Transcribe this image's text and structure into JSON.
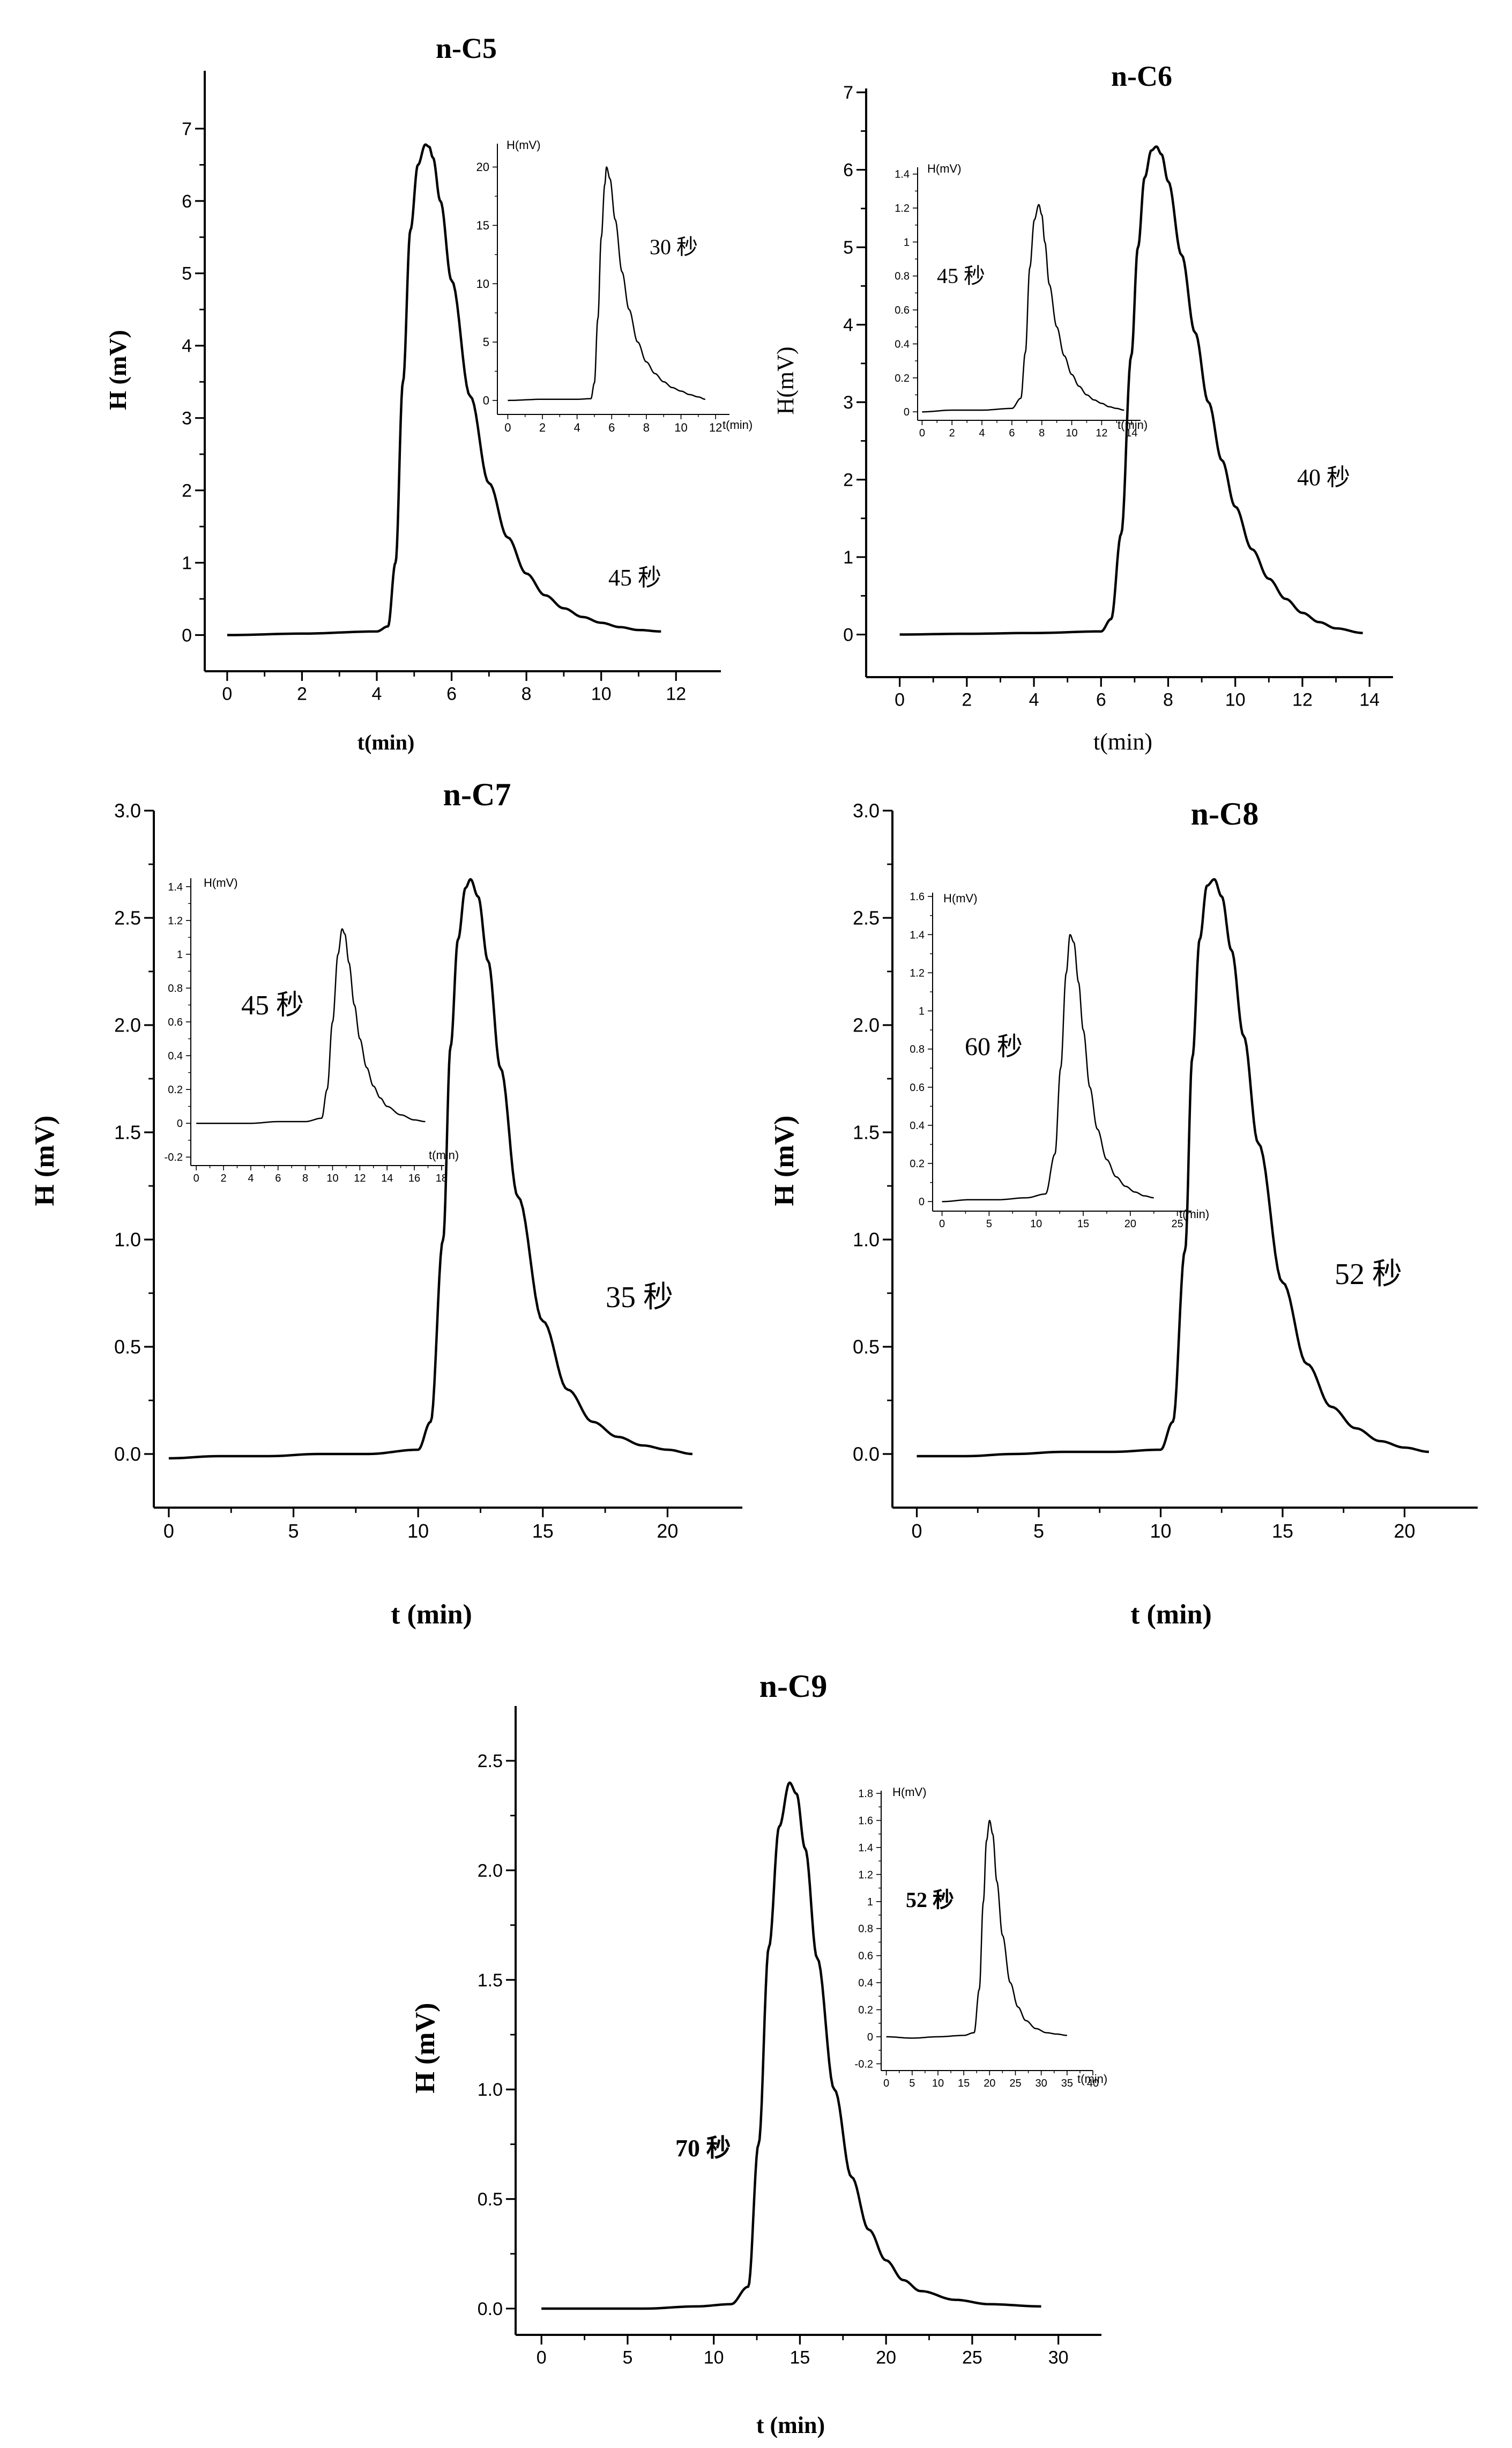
{
  "figure": {
    "charts": [
      {
        "id": "c5",
        "title": "n-C5",
        "title_bold": true,
        "xlabel": "t(min)",
        "ylabel": "H (mV)",
        "label_bold": true,
        "annotation": "45 秒",
        "annotation_bold": false,
        "inset": {
          "ylabel": "H(mV)",
          "xlabel": "t(min)",
          "annotation": "30 秒"
        }
      },
      {
        "id": "c6",
        "title": "n-C6",
        "title_bold": true,
        "xlabel": "t(min)",
        "ylabel": "H(mV)",
        "label_bold": false,
        "annotation": "40 秒",
        "annotation_bold": false,
        "inset": {
          "ylabel": "H(mV)",
          "xlabel": "t(min)",
          "annotation": "45 秒"
        }
      },
      {
        "id": "c7",
        "title": "n-C7",
        "title_bold": true,
        "xlabel": "t (min)",
        "ylabel": "H (mV)",
        "label_bold": true,
        "annotation": "35 秒",
        "annotation_bold": false,
        "inset": {
          "ylabel": "H(mV)",
          "xlabel": "t(min)",
          "annotation": "45 秒"
        }
      },
      {
        "id": "c8",
        "title": "n-C8",
        "title_bold": true,
        "xlabel": "t (min)",
        "ylabel": "H (mV)",
        "label_bold": true,
        "annotation": "52 秒",
        "annotation_bold": false,
        "inset": {
          "ylabel": "H(mV)",
          "xlabel": "t(min)",
          "annotation": "60 秒"
        }
      },
      {
        "id": "c9",
        "title": "n-C9",
        "title_bold": true,
        "xlabel": "t (min)",
        "ylabel": "H (mV)",
        "label_bold": true,
        "annotation": "70 秒",
        "annotation_bold": true,
        "inset": {
          "ylabel": "H(mV)",
          "xlabel": "t(min)",
          "annotation": "52 秒"
        }
      }
    ]
  },
  "chart_data": [
    {
      "type": "line",
      "title": "n-C5",
      "xlabel": "t(min)",
      "ylabel": "H (mV)",
      "xlim": [
        -0.6,
        13.2
      ],
      "ylim": [
        -0.5,
        7.8
      ],
      "xticks": [
        0,
        2,
        4,
        6,
        8,
        10,
        12
      ],
      "yticks": [
        0,
        1,
        2,
        3,
        4,
        5,
        6,
        7
      ],
      "annotations": [
        "45 秒"
      ],
      "series": [
        {
          "name": "n-C5",
          "x": [
            0,
            2,
            4,
            4.3,
            4.5,
            4.7,
            4.9,
            5.1,
            5.3,
            5.4,
            5.5,
            5.7,
            6,
            6.5,
            7,
            7.5,
            8,
            8.5,
            9,
            9.5,
            10,
            10.5,
            11,
            11.6
          ],
          "y": [
            0,
            0.02,
            0.05,
            0.12,
            1.0,
            3.5,
            5.6,
            6.5,
            6.78,
            6.75,
            6.6,
            6.0,
            4.9,
            3.3,
            2.1,
            1.35,
            0.85,
            0.55,
            0.37,
            0.25,
            0.17,
            0.11,
            0.07,
            0.05
          ]
        }
      ],
      "inset": {
        "title": "",
        "xlabel": "t(min)",
        "ylabel": "H(mV)",
        "xlim": [
          -0.6,
          12.8
        ],
        "ylim": [
          -1.2,
          22
        ],
        "xticks": [
          0,
          2,
          4,
          6,
          8,
          10,
          12
        ],
        "yticks": [
          0,
          5,
          10,
          15,
          20
        ],
        "annotations": [
          "30 秒"
        ],
        "series": [
          {
            "name": "n-C5 inset",
            "x": [
              0,
              2,
              4,
              4.8,
              5,
              5.2,
              5.4,
              5.6,
              5.7,
              5.9,
              6.2,
              6.6,
              7,
              7.5,
              8,
              8.5,
              9,
              9.5,
              10,
              10.5,
              11,
              11.4
            ],
            "y": [
              0,
              0.1,
              0.1,
              0.15,
              1.5,
              7,
              14,
              18.5,
              20,
              19,
              15.5,
              11,
              7.8,
              5,
              3.3,
              2.3,
              1.6,
              1.1,
              0.8,
              0.5,
              0.3,
              0.1
            ]
          }
        ]
      }
    },
    {
      "type": "line",
      "title": "n-C6",
      "xlabel": "t(min)",
      "ylabel": "H(mV)",
      "xlim": [
        -1,
        14.7
      ],
      "ylim": [
        -0.55,
        7.05
      ],
      "xticks": [
        0,
        2,
        4,
        6,
        8,
        10,
        12,
        14
      ],
      "yticks": [
        0,
        1,
        2,
        3,
        4,
        5,
        6,
        7
      ],
      "annotations": [
        "40 秒"
      ],
      "series": [
        {
          "name": "n-C6",
          "x": [
            0,
            2,
            4,
            6,
            6.3,
            6.6,
            6.9,
            7.1,
            7.3,
            7.5,
            7.65,
            7.8,
            8,
            8.4,
            8.8,
            9.2,
            9.6,
            10,
            10.5,
            11,
            11.5,
            12,
            12.5,
            13,
            13.8
          ],
          "y": [
            0,
            0.01,
            0.02,
            0.04,
            0.2,
            1.3,
            3.6,
            5.0,
            5.9,
            6.25,
            6.3,
            6.2,
            5.85,
            4.9,
            3.9,
            3.0,
            2.25,
            1.65,
            1.1,
            0.72,
            0.46,
            0.28,
            0.16,
            0.08,
            0.02
          ]
        }
      ],
      "inset": {
        "title": "",
        "xlabel": "t(min)",
        "ylabel": "H(mV)",
        "xlim": [
          -0.3,
          14.6
        ],
        "ylim": [
          -0.05,
          1.44
        ],
        "xticks": [
          0,
          2,
          4,
          6,
          8,
          10,
          12,
          14
        ],
        "yticks": [
          0.0,
          0.2,
          0.4,
          0.6,
          0.8,
          1.0,
          1.2,
          1.4
        ],
        "annotations": [
          "45 秒"
        ],
        "series": [
          {
            "name": "n-C6 inset",
            "x": [
              0,
              2,
              4,
              6,
              6.6,
              6.9,
              7.2,
              7.5,
              7.8,
              8.0,
              8.2,
              8.5,
              9,
              9.5,
              10,
              10.5,
              11,
              11.5,
              12,
              12.5,
              13,
              13.5
            ],
            "y": [
              0.0,
              0.01,
              0.01,
              0.02,
              0.08,
              0.35,
              0.85,
              1.13,
              1.22,
              1.16,
              1.0,
              0.75,
              0.5,
              0.33,
              0.22,
              0.15,
              0.1,
              0.07,
              0.05,
              0.03,
              0.02,
              0.01
            ]
          }
        ]
      }
    },
    {
      "type": "line",
      "title": "n-C7",
      "xlabel": "t (min)",
      "ylabel": "H (mV)",
      "xlim": [
        -0.6,
        23
      ],
      "ylim": [
        -0.25,
        3.0
      ],
      "xticks": [
        0,
        5,
        10,
        15,
        20
      ],
      "yticks": [
        0.0,
        0.5,
        1.0,
        1.5,
        2.0,
        2.5,
        3.0
      ],
      "yticklabels": [
        "0.0",
        "0.5",
        "1.0",
        "1.5",
        "2.0",
        "2.5",
        "3.0"
      ],
      "annotations": [
        "35 秒"
      ],
      "series": [
        {
          "name": "n-C7",
          "x": [
            0,
            2,
            4,
            6,
            8,
            10,
            10.5,
            11,
            11.3,
            11.6,
            11.9,
            12.1,
            12.4,
            12.8,
            13.3,
            14,
            15,
            16,
            17,
            18,
            19,
            20,
            21
          ],
          "y": [
            -0.02,
            -0.01,
            -0.01,
            0.0,
            0.0,
            0.02,
            0.15,
            1.0,
            1.9,
            2.4,
            2.64,
            2.68,
            2.6,
            2.3,
            1.8,
            1.2,
            0.62,
            0.3,
            0.15,
            0.08,
            0.04,
            0.02,
            0.0
          ]
        }
      ],
      "inset": {
        "title": "",
        "xlabel": "t(min)",
        "ylabel": "H(mV)",
        "xlim": [
          -0.4,
          18.2
        ],
        "ylim": [
          -0.25,
          1.45
        ],
        "xticks": [
          0,
          2,
          4,
          6,
          8,
          10,
          12,
          14,
          16,
          18
        ],
        "yticks": [
          -0.2,
          0.0,
          0.2,
          0.4,
          0.6,
          0.8,
          1.0,
          1.2,
          1.4
        ],
        "annotations": [
          "45 秒"
        ],
        "series": [
          {
            "name": "n-C7 inset",
            "x": [
              0,
              2,
              4,
              6,
              8,
              9.2,
              9.6,
              10,
              10.4,
              10.7,
              10.9,
              11.2,
              11.6,
              12,
              12.5,
              13,
              13.5,
              14,
              15,
              16,
              16.8
            ],
            "y": [
              0.0,
              0.0,
              0.0,
              0.01,
              0.01,
              0.03,
              0.2,
              0.6,
              1.0,
              1.15,
              1.12,
              0.95,
              0.7,
              0.5,
              0.33,
              0.22,
              0.15,
              0.1,
              0.05,
              0.02,
              0.01
            ]
          }
        ]
      }
    },
    {
      "type": "line",
      "title": "n-C8",
      "xlabel": "t (min)",
      "ylabel": "H (mV)",
      "xlim": [
        -1,
        23
      ],
      "ylim": [
        -0.25,
        3.0
      ],
      "xticks": [
        0,
        5,
        10,
        15,
        20
      ],
      "yticks": [
        0.0,
        0.5,
        1.0,
        1.5,
        2.0,
        2.5,
        3.0
      ],
      "yticklabels": [
        "0.0",
        "0.5",
        "1.0",
        "1.5",
        "2.0",
        "2.5",
        "3.0"
      ],
      "annotations": [
        "52 秒"
      ],
      "series": [
        {
          "name": "n-C8",
          "x": [
            0,
            2,
            4,
            6,
            8,
            10,
            10.5,
            11,
            11.3,
            11.6,
            11.9,
            12.2,
            12.5,
            12.9,
            13.4,
            14,
            15,
            16,
            17,
            18,
            19,
            20,
            21
          ],
          "y": [
            -0.01,
            -0.01,
            0.0,
            0.01,
            0.01,
            0.02,
            0.15,
            0.95,
            1.85,
            2.4,
            2.65,
            2.68,
            2.6,
            2.35,
            1.95,
            1.45,
            0.8,
            0.42,
            0.22,
            0.12,
            0.06,
            0.03,
            0.01
          ]
        }
      ],
      "inset": {
        "title": "",
        "xlabel": "t(min)",
        "ylabel": "H(mV)",
        "xlim": [
          -1,
          26.5
        ],
        "ylim": [
          -0.05,
          1.62
        ],
        "xticks": [
          0,
          5,
          10,
          15,
          20,
          25
        ],
        "yticks": [
          0.0,
          0.2,
          0.4,
          0.6,
          0.8,
          1.0,
          1.2,
          1.4,
          1.6
        ],
        "annotations": [
          "60 秒"
        ],
        "series": [
          {
            "name": "n-C8 inset",
            "x": [
              0,
              3,
              6,
              9,
              11,
              12,
              12.6,
              13.2,
              13.6,
              14,
              14.5,
              15,
              15.7,
              16.5,
              17.5,
              18.5,
              19.5,
              20.5,
              21.5,
              22.5
            ],
            "y": [
              0.0,
              0.01,
              0.01,
              0.02,
              0.04,
              0.25,
              0.7,
              1.2,
              1.4,
              1.36,
              1.15,
              0.9,
              0.6,
              0.38,
              0.22,
              0.13,
              0.08,
              0.05,
              0.03,
              0.02
            ]
          }
        ]
      }
    },
    {
      "type": "line",
      "title": "n-C9",
      "xlabel": "t (min)",
      "ylabel": "H (mV)",
      "xlim": [
        -1.5,
        32.5
      ],
      "ylim": [
        -0.12,
        2.75
      ],
      "xticks": [
        0,
        5,
        10,
        15,
        20,
        25,
        30
      ],
      "yticks": [
        0.0,
        0.5,
        1.0,
        1.5,
        2.0,
        2.5
      ],
      "yticklabels": [
        "0.0",
        "0.5",
        "1.0",
        "1.5",
        "2.0",
        "2.5"
      ],
      "annotations": [
        "70 秒"
      ],
      "series": [
        {
          "name": "n-C9",
          "x": [
            0,
            3,
            6,
            9,
            11,
            12,
            12.6,
            13.2,
            13.8,
            14.4,
            14.8,
            15.3,
            16,
            17,
            18,
            19,
            20,
            21,
            22,
            24,
            26,
            29
          ],
          "y": [
            0.0,
            0.0,
            0.0,
            0.01,
            0.02,
            0.1,
            0.75,
            1.65,
            2.2,
            2.4,
            2.35,
            2.1,
            1.6,
            1.0,
            0.6,
            0.36,
            0.22,
            0.13,
            0.08,
            0.04,
            0.02,
            0.01
          ]
        }
      ],
      "inset": {
        "title": "",
        "xlabel": "t(min)",
        "ylabel": "H(mV)",
        "xlim": [
          -1,
          40
        ],
        "ylim": [
          -0.25,
          1.82
        ],
        "xticks": [
          0,
          5,
          10,
          15,
          20,
          25,
          30,
          35,
          40
        ],
        "yticks": [
          -0.2,
          0.0,
          0.2,
          0.4,
          0.6,
          0.8,
          1.0,
          1.2,
          1.4,
          1.6,
          1.8
        ],
        "annotations": [
          "52 秒"
        ],
        "series": [
          {
            "name": "n-C9 inset",
            "x": [
              0,
              5,
              10,
              15,
              17,
              18,
              18.8,
              19.4,
              20,
              20.6,
              21.4,
              22.5,
              24,
              25.5,
              27,
              29,
              31,
              33,
              35
            ],
            "y": [
              0.0,
              -0.01,
              0.0,
              0.01,
              0.03,
              0.35,
              1.0,
              1.45,
              1.6,
              1.5,
              1.15,
              0.75,
              0.4,
              0.22,
              0.12,
              0.06,
              0.03,
              0.02,
              0.01
            ]
          }
        ]
      }
    }
  ]
}
